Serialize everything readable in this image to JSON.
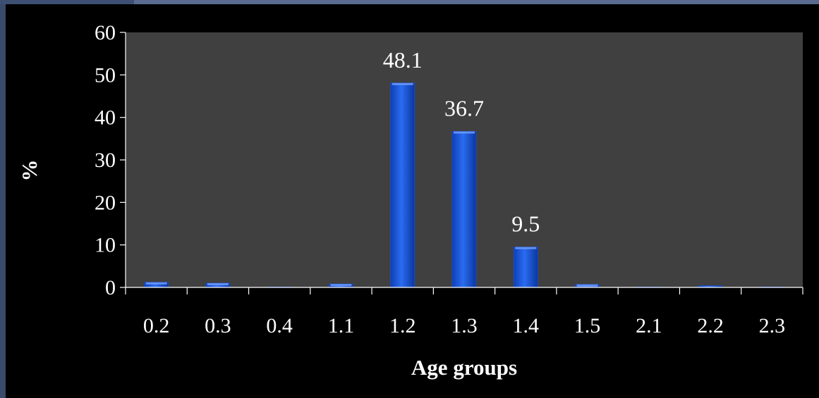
{
  "chart_data": {
    "type": "bar",
    "categories": [
      "0.2",
      "0.3",
      "0.4",
      "1.1",
      "1.2",
      "1.3",
      "1.4",
      "1.5",
      "2.1",
      "2.2",
      "2.3"
    ],
    "values": [
      1.2,
      1.0,
      0.1,
      0.8,
      48.1,
      36.7,
      9.5,
      0.7,
      0.1,
      0.4,
      0.0
    ],
    "data_labels": [
      {
        "category": "1.2",
        "text": "48.1"
      },
      {
        "category": "1.3",
        "text": "36.7"
      },
      {
        "category": "1.4",
        "text": "9.5"
      }
    ],
    "y_ticks": [
      "0",
      "10",
      "20",
      "30",
      "40",
      "50",
      "60"
    ],
    "ylim": [
      0,
      60
    ],
    "xlabel": "Age groups",
    "ylabel": "%",
    "grid": false,
    "legend": "none"
  },
  "colors": {
    "background": "#000000",
    "plot_area": "#404040",
    "bar": "#1f5fe0",
    "bar_highlight": "#6f9bff",
    "text": "#ffffff",
    "axis": "#ffffff"
  }
}
